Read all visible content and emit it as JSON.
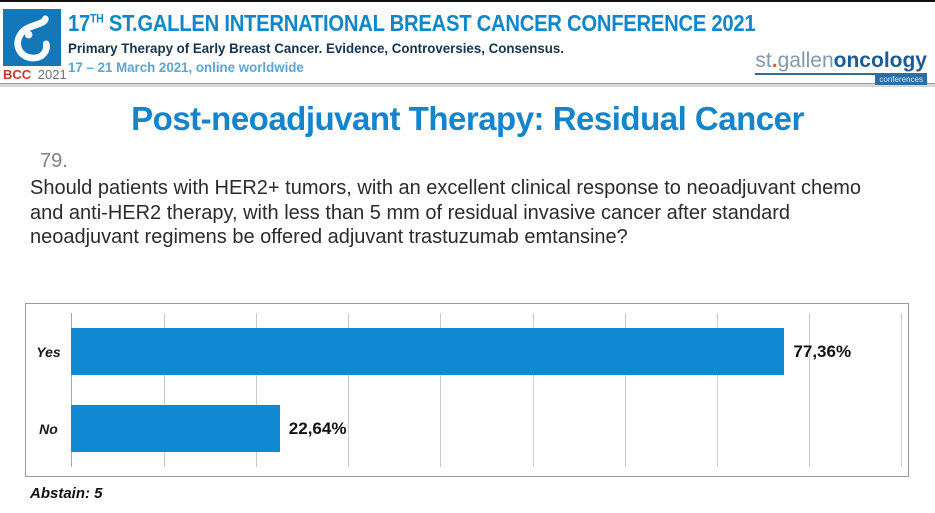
{
  "header": {
    "logo": {
      "badge_red": "BCC",
      "badge_year": "2021"
    },
    "conference_number": "17",
    "conference_ordinal": "TH",
    "conference_title_rest": " ST.GALLEN INTERNATIONAL BREAST CANCER CONFERENCE 2021",
    "subtitle": "Primary Therapy of Early Breast Cancer. Evidence, Controversies, Consensus.",
    "date_line": "17 – 21 March 2021, online worldwide",
    "org_logo": {
      "part_st": "st",
      "dot": ".",
      "part_gallen": "gallen",
      "part_oncology": "oncology",
      "badge": "conferences"
    }
  },
  "slide": {
    "title": "Post-neoadjuvant Therapy: Residual Cancer",
    "question_number": "79.",
    "question_text": "Should patients with HER2+ tumors, with an excellent clinical response to neoadjuvant chemo and anti-HER2 therapy, with less than 5 mm of residual invasive cancer after standard neoadjuvant regimens be offered adjuvant trastuzumab emtansine?"
  },
  "chart_data": {
    "type": "bar",
    "orientation": "horizontal",
    "title": "",
    "categories": [
      "Yes",
      "No"
    ],
    "values": [
      77.36,
      22.64
    ],
    "value_labels": [
      "77,36%",
      "22,64%"
    ],
    "xlim": [
      0,
      90
    ],
    "gridline_step": 10,
    "grid": true,
    "legend": false,
    "bar_color": "#1189d2",
    "abstain_note": "Abstain: 5"
  },
  "colors": {
    "accent_blue": "#1187c8",
    "title_blue": "#1484cd",
    "subtitle_navy": "#16344e",
    "date_light_blue": "#5aa5d6",
    "logo_square_blue": "#1478b8",
    "bcc_red": "#c43a2e",
    "bar_blue": "#1189d2",
    "org_oncology_blue": "#1a5c96",
    "org_gray_blue": "#8099ad"
  }
}
